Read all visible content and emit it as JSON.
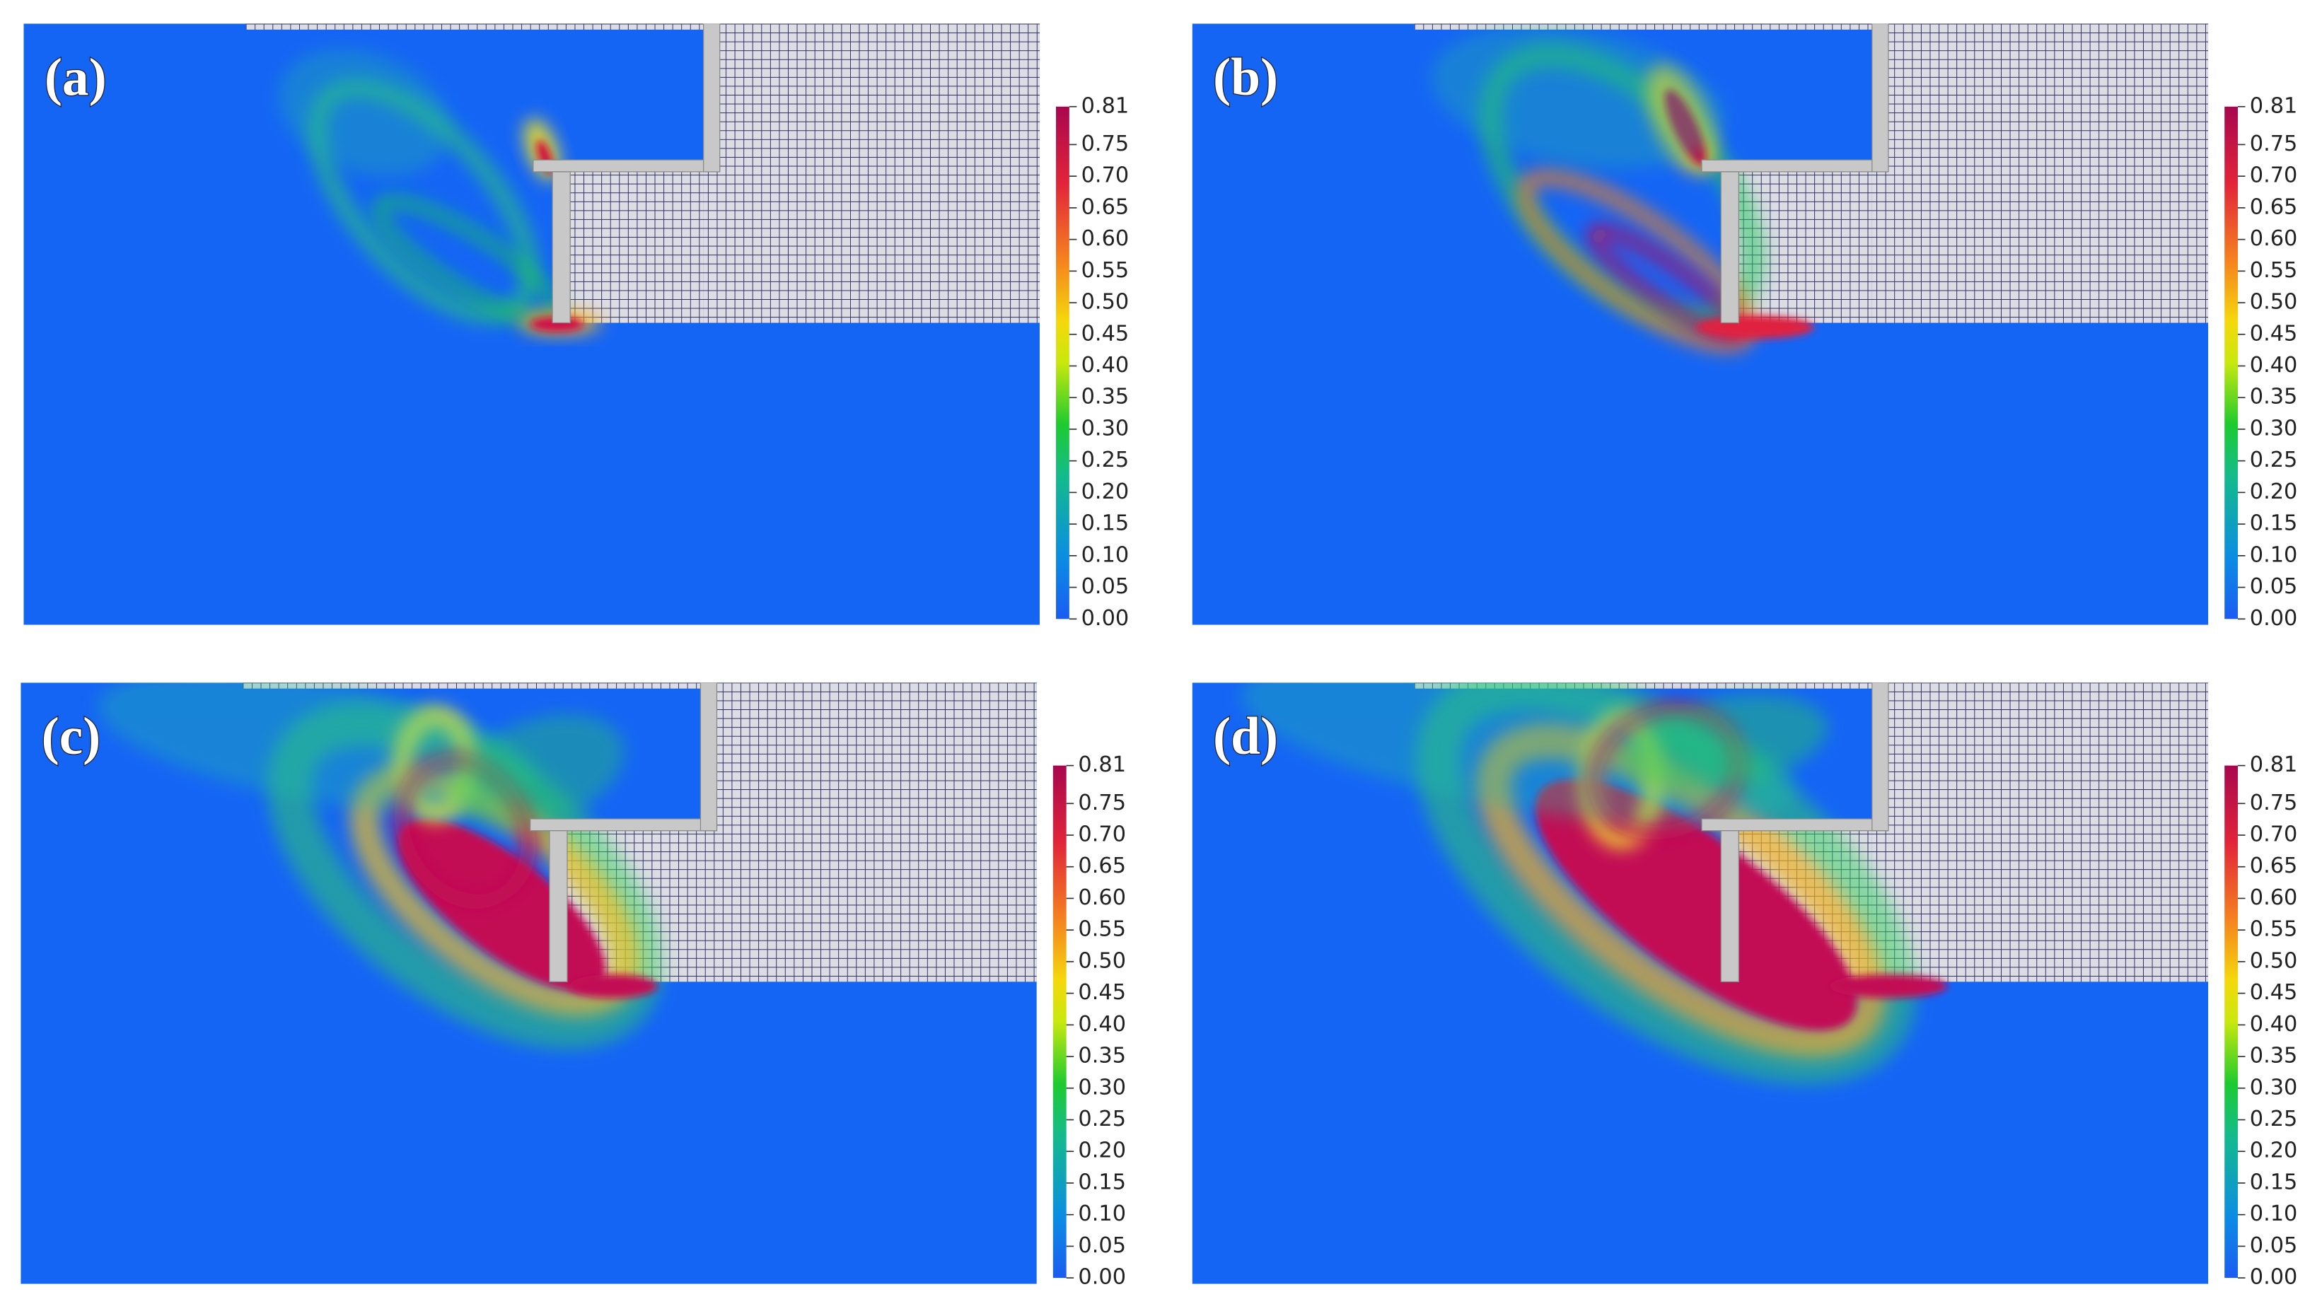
{
  "panels": [
    {
      "label": "(a)"
    },
    {
      "label": "(b)"
    },
    {
      "label": "(c)"
    },
    {
      "label": "(d)"
    }
  ],
  "colorbar": {
    "range": [
      0,
      0.81
    ],
    "ticks": [
      0.81,
      0.75,
      {
        "value": 0.7,
        "label": "0.70"
      },
      0.65,
      {
        "value": 0.6,
        "label": "0.60"
      },
      0.55,
      {
        "value": 0.5,
        "label": "0.50"
      },
      0.45,
      {
        "value": 0.4,
        "label": "0.40"
      },
      0.35,
      {
        "value": 0.3,
        "label": "0.30"
      },
      0.25,
      {
        "value": 0.2,
        "label": "0.20"
      },
      0.15,
      {
        "value": 0.1,
        "label": "0.10"
      },
      0.05,
      {
        "value": 0,
        "label": "0.00"
      }
    ]
  }
}
